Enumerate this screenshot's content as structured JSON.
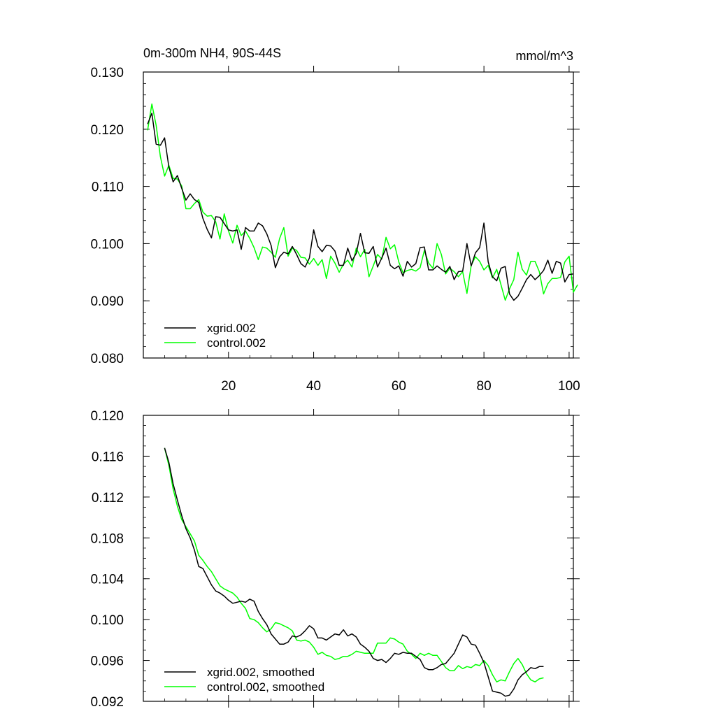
{
  "chart_data": [
    {
      "type": "line",
      "title": "0m-300m NH4, 90S-44S",
      "units": "mmol/m^3",
      "xlim": [
        0,
        101
      ],
      "ylim": [
        0.08,
        0.13
      ],
      "yticks": [
        "0.080",
        "0.090",
        "0.100",
        "0.110",
        "0.120",
        "0.130"
      ],
      "xticks": [
        "20",
        "40",
        "60",
        "80",
        "100"
      ],
      "legend_position": "bottom-left",
      "series": [
        {
          "name": "xgrid.002",
          "color": "#000000",
          "x_start": 1,
          "values": [
            0.1209,
            0.1228,
            0.1174,
            0.1172,
            0.1185,
            0.1134,
            0.1108,
            0.1119,
            0.1097,
            0.1076,
            0.1087,
            0.1077,
            0.1072,
            0.1044,
            0.1025,
            0.101,
            0.1047,
            0.1046,
            0.1035,
            0.1024,
            0.1022,
            0.1024,
            0.099,
            0.1028,
            0.1022,
            0.1022,
            0.1036,
            0.1031,
            0.1017,
            0.0997,
            0.0958,
            0.0977,
            0.0985,
            0.0982,
            0.0995,
            0.0981,
            0.0965,
            0.0959,
            0.0975,
            0.1024,
            0.0995,
            0.0986,
            0.0997,
            0.0996,
            0.0987,
            0.0962,
            0.0962,
            0.0992,
            0.097,
            0.0983,
            0.1018,
            0.0984,
            0.0983,
            0.0995,
            0.0959,
            0.0975,
            0.0992,
            0.0962,
            0.0956,
            0.0961,
            0.0943,
            0.0969,
            0.0959,
            0.0965,
            0.0993,
            0.0994,
            0.0954,
            0.0954,
            0.0961,
            0.0955,
            0.095,
            0.096,
            0.0937,
            0.0951,
            0.0952,
            0.1,
            0.0961,
            0.0984,
            0.0993,
            0.1036,
            0.0968,
            0.0942,
            0.0935,
            0.0957,
            0.096,
            0.0912,
            0.0901,
            0.0908,
            0.0922,
            0.0937,
            0.0946,
            0.0937,
            0.0944,
            0.0953,
            0.0971,
            0.0948,
            0.0969,
            0.0966,
            0.0933,
            0.0946,
            0.0947
          ]
        },
        {
          "name": "control.002",
          "color": "#00ff00",
          "x_start": 1,
          "values": [
            0.1198,
            0.1244,
            0.1207,
            0.1152,
            0.1118,
            0.1137,
            0.1114,
            0.1113,
            0.1101,
            0.1061,
            0.1061,
            0.107,
            0.1077,
            0.1055,
            0.1048,
            0.1049,
            0.1038,
            0.1008,
            0.1052,
            0.1022,
            0.1001,
            0.1032,
            0.1014,
            0.1022,
            0.1009,
            0.0993,
            0.0972,
            0.0994,
            0.0992,
            0.0985,
            0.0976,
            0.1009,
            0.1028,
            0.0978,
            0.0992,
            0.0988,
            0.0976,
            0.0975,
            0.0964,
            0.0974,
            0.0962,
            0.0972,
            0.0939,
            0.0978,
            0.0966,
            0.095,
            0.0964,
            0.0971,
            0.0959,
            0.0992,
            0.0977,
            0.099,
            0.0942,
            0.0961,
            0.0981,
            0.0973,
            0.1011,
            0.0991,
            0.0998,
            0.0968,
            0.0949,
            0.0953,
            0.0955,
            0.0952,
            0.0958,
            0.0988,
            0.0966,
            0.0957,
            0.1,
            0.0981,
            0.0947,
            0.0957,
            0.0951,
            0.0942,
            0.0951,
            0.0913,
            0.0962,
            0.0977,
            0.0969,
            0.0954,
            0.0962,
            0.094,
            0.0955,
            0.0928,
            0.0901,
            0.0921,
            0.0937,
            0.0985,
            0.0955,
            0.0945,
            0.0969,
            0.0969,
            0.0951,
            0.0912,
            0.093,
            0.0939,
            0.0939,
            0.0941,
            0.0968,
            0.0978,
            0.0915,
            0.0928
          ]
        }
      ]
    },
    {
      "type": "line",
      "title": "",
      "units": "",
      "xlim": [
        0,
        101
      ],
      "ylim": [
        0.092,
        0.12
      ],
      "yticks": [
        "0.092",
        "0.096",
        "0.100",
        "0.104",
        "0.108",
        "0.112",
        "0.116",
        "0.120"
      ],
      "legend_position": "bottom-left",
      "series": [
        {
          "name": "xgrid.002, smoothed",
          "color": "#000000",
          "x_start": 5,
          "values": [
            0.1168,
            0.1154,
            0.1133,
            0.1117,
            0.1102,
            0.1089,
            0.108,
            0.1068,
            0.1052,
            0.105,
            0.1042,
            0.1034,
            0.1028,
            0.1026,
            0.1023,
            0.1019,
            0.1016,
            0.1017,
            0.1018,
            0.1017,
            0.102,
            0.1018,
            0.1008,
            0.1001,
            0.0995,
            0.0986,
            0.0981,
            0.0976,
            0.0976,
            0.0978,
            0.0984,
            0.0983,
            0.0985,
            0.0989,
            0.0994,
            0.0991,
            0.0982,
            0.0982,
            0.098,
            0.0983,
            0.0986,
            0.0985,
            0.099,
            0.0984,
            0.0986,
            0.0983,
            0.0976,
            0.0973,
            0.0969,
            0.0962,
            0.096,
            0.0961,
            0.0958,
            0.0962,
            0.0967,
            0.0966,
            0.0968,
            0.0967,
            0.0967,
            0.0964,
            0.0961,
            0.0953,
            0.0951,
            0.0951,
            0.0953,
            0.0956,
            0.0957,
            0.0962,
            0.0967,
            0.0976,
            0.0985,
            0.0983,
            0.0976,
            0.0975,
            0.0967,
            0.0958,
            0.0944,
            0.093,
            0.0929,
            0.0928,
            0.0925,
            0.0926,
            0.0932,
            0.0941,
            0.0946,
            0.0949,
            0.0953,
            0.0952,
            0.0954,
            0.0954
          ]
        },
        {
          "name": "control.002, smoothed",
          "color": "#00ff00",
          "x_start": 5,
          "values": [
            0.1168,
            0.1151,
            0.1128,
            0.1111,
            0.1098,
            0.1091,
            0.1084,
            0.1077,
            0.1063,
            0.1058,
            0.1052,
            0.1047,
            0.104,
            0.1033,
            0.103,
            0.1028,
            0.1026,
            0.1022,
            0.1016,
            0.1011,
            0.1001,
            0.1,
            0.0997,
            0.0992,
            0.0988,
            0.0991,
            0.0997,
            0.0996,
            0.0994,
            0.0992,
            0.0989,
            0.098,
            0.0979,
            0.098,
            0.0978,
            0.0973,
            0.0966,
            0.0968,
            0.0965,
            0.0964,
            0.0961,
            0.0962,
            0.0964,
            0.0964,
            0.0966,
            0.0969,
            0.0968,
            0.0967,
            0.0967,
            0.0967,
            0.0977,
            0.0977,
            0.0977,
            0.0982,
            0.0981,
            0.0978,
            0.0976,
            0.0969,
            0.0966,
            0.0962,
            0.0967,
            0.0965,
            0.0967,
            0.0965,
            0.0965,
            0.0959,
            0.0953,
            0.095,
            0.095,
            0.0955,
            0.0952,
            0.0954,
            0.0953,
            0.0956,
            0.0955,
            0.096,
            0.0955,
            0.0946,
            0.0939,
            0.0941,
            0.094,
            0.0949,
            0.0957,
            0.0962,
            0.0956,
            0.0947,
            0.0941,
            0.0939,
            0.0942,
            0.0943
          ]
        }
      ]
    }
  ]
}
